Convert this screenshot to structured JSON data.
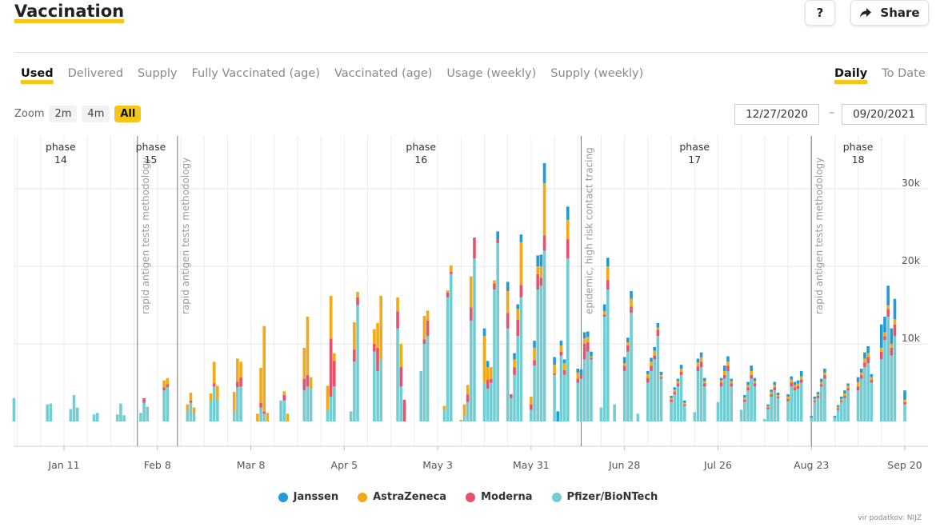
{
  "header": {
    "title": "Vaccination",
    "help_label": "?",
    "share_label": "Share"
  },
  "tabs": [
    "Used",
    "Delivered",
    "Supply",
    "Fully Vaccinated (age)",
    "Vaccinated (age)",
    "Usage (weekly)",
    "Supply (weekly)"
  ],
  "active_tab": "Used",
  "modes": [
    "Daily",
    "To Date"
  ],
  "active_mode": "Daily",
  "zoom": {
    "label": "Zoom",
    "options": [
      "2m",
      "4m",
      "All"
    ],
    "active": "All"
  },
  "date_range": {
    "from": "12/27/2020",
    "to": "09/20/2021",
    "separator": "–"
  },
  "source": "vir podatkov: NIJZ",
  "chart_data": {
    "type": "bar",
    "stacked": true,
    "x_range": [
      "2020-12-27",
      "2021-09-21"
    ],
    "ylim": [
      0,
      36000
    ],
    "y_ticks": [
      10000,
      20000,
      30000
    ],
    "y_tick_labels": [
      "10k",
      "20k",
      "30k"
    ],
    "x_ticks": [
      "2021-01-11",
      "2021-02-08",
      "2021-03-08",
      "2021-04-05",
      "2021-05-03",
      "2021-05-31",
      "2021-06-28",
      "2021-07-26",
      "2021-08-23",
      "2021-09-20"
    ],
    "x_tick_labels": [
      "Jan 11",
      "Feb 8",
      "Mar 8",
      "Apr 5",
      "May 3",
      "May 31",
      "Jun 28",
      "Jul 26",
      "Aug 23",
      "Sep 20"
    ],
    "series_colors": {
      "Janssen": "#1f9bd7",
      "AstraZeneca": "#f5a815",
      "Moderna": "#e8516b",
      "Pfizer/BioNTech": "#72cdd2"
    },
    "legend": [
      "Janssen",
      "AstraZeneca",
      "Moderna",
      "Pfizer/BioNTech"
    ],
    "phases": [
      {
        "label": "phase",
        "number": "14",
        "date": "2021-01-10"
      },
      {
        "label": "phase",
        "number": "15",
        "date": "2021-02-06"
      },
      {
        "label": "phase",
        "number": "16",
        "date": "2021-04-28"
      },
      {
        "label": "phase",
        "number": "17",
        "date": "2021-07-19"
      },
      {
        "label": "phase",
        "number": "18",
        "date": "2021-09-06"
      }
    ],
    "annotations": [
      {
        "date": "2021-02-02",
        "text": "rapid antigen tests methodology"
      },
      {
        "date": "2021-02-14",
        "text": "rapid antigen tests methodology"
      },
      {
        "date": "2021-06-15",
        "text": "epidemic, high risk contact tracing"
      },
      {
        "date": "2021-08-23",
        "text": "rapid antigen tests methodology"
      }
    ],
    "bars": [
      {
        "date": "2020-12-27",
        "p": 3000,
        "m": 0,
        "a": 0,
        "j": 0
      },
      {
        "date": "2021-01-06",
        "p": 2200,
        "m": 0,
        "a": 0,
        "j": 0
      },
      {
        "date": "2021-01-07",
        "p": 2300,
        "m": 0,
        "a": 0,
        "j": 0
      },
      {
        "date": "2021-01-13",
        "p": 1600,
        "m": 0,
        "a": 0,
        "j": 0
      },
      {
        "date": "2021-01-14",
        "p": 3400,
        "m": 0,
        "a": 0,
        "j": 0
      },
      {
        "date": "2021-01-15",
        "p": 1800,
        "m": 0,
        "a": 0,
        "j": 0
      },
      {
        "date": "2021-01-20",
        "p": 900,
        "m": 0,
        "a": 0,
        "j": 0
      },
      {
        "date": "2021-01-21",
        "p": 1100,
        "m": 0,
        "a": 0,
        "j": 0
      },
      {
        "date": "2021-01-27",
        "p": 900,
        "m": 0,
        "a": 0,
        "j": 0
      },
      {
        "date": "2021-01-28",
        "p": 2300,
        "m": 0,
        "a": 0,
        "j": 0
      },
      {
        "date": "2021-01-29",
        "p": 800,
        "m": 0,
        "a": 0,
        "j": 0
      },
      {
        "date": "2021-02-03",
        "p": 1100,
        "m": 0,
        "a": 0,
        "j": 0
      },
      {
        "date": "2021-02-04",
        "p": 2400,
        "m": 600,
        "a": 0,
        "j": 0
      },
      {
        "date": "2021-02-05",
        "p": 1900,
        "m": 0,
        "a": 0,
        "j": 0
      },
      {
        "date": "2021-02-10",
        "p": 4000,
        "m": 400,
        "a": 900,
        "j": 0
      },
      {
        "date": "2021-02-11",
        "p": 4400,
        "m": 400,
        "a": 800,
        "j": 0
      },
      {
        "date": "2021-02-17",
        "p": 1400,
        "m": 0,
        "a": 800,
        "j": 0
      },
      {
        "date": "2021-02-18",
        "p": 2400,
        "m": 300,
        "a": 1000,
        "j": 0
      },
      {
        "date": "2021-02-19",
        "p": 1000,
        "m": 0,
        "a": 800,
        "j": 0
      },
      {
        "date": "2021-02-24",
        "p": 2600,
        "m": 0,
        "a": 1000,
        "j": 0
      },
      {
        "date": "2021-02-25",
        "p": 4500,
        "m": 400,
        "a": 2800,
        "j": 0
      },
      {
        "date": "2021-02-26",
        "p": 2800,
        "m": 0,
        "a": 1800,
        "j": 0
      },
      {
        "date": "2021-03-03",
        "p": 1300,
        "m": 0,
        "a": 2500,
        "j": 0
      },
      {
        "date": "2021-03-04",
        "p": 4400,
        "m": 700,
        "a": 3000,
        "j": 0
      },
      {
        "date": "2021-03-05",
        "p": 4500,
        "m": 1200,
        "a": 2000,
        "j": 0
      },
      {
        "date": "2021-03-10",
        "p": 0,
        "m": 0,
        "a": 1000,
        "j": 0
      },
      {
        "date": "2021-03-11",
        "p": 1800,
        "m": 600,
        "a": 4500,
        "j": 0
      },
      {
        "date": "2021-03-12",
        "p": 1000,
        "m": 300,
        "a": 11000,
        "j": 0
      },
      {
        "date": "2021-03-13",
        "p": 0,
        "m": 0,
        "a": 1100,
        "j": 0
      },
      {
        "date": "2021-03-17",
        "p": 2700,
        "m": 0,
        "a": 0,
        "j": 0
      },
      {
        "date": "2021-03-18",
        "p": 2700,
        "m": 700,
        "a": 500,
        "j": 0
      },
      {
        "date": "2021-03-19",
        "p": 0,
        "m": 0,
        "a": 1000,
        "j": 0
      },
      {
        "date": "2021-03-24",
        "p": 4000,
        "m": 1500,
        "a": 4000,
        "j": 0
      },
      {
        "date": "2021-03-25",
        "p": 4500,
        "m": 1500,
        "a": 7500,
        "j": 0
      },
      {
        "date": "2021-03-26",
        "p": 4200,
        "m": 0,
        "a": 1500,
        "j": 0
      },
      {
        "date": "2021-03-31",
        "p": 1500,
        "m": 0,
        "a": 3100,
        "j": 0
      },
      {
        "date": "2021-04-01",
        "p": 3200,
        "m": 7500,
        "a": 5500,
        "j": 0
      },
      {
        "date": "2021-04-02",
        "p": 4500,
        "m": 3300,
        "a": 1000,
        "j": 0
      },
      {
        "date": "2021-04-07",
        "p": 1300,
        "m": 0,
        "a": 0,
        "j": 0
      },
      {
        "date": "2021-04-08",
        "p": 7700,
        "m": 1600,
        "a": 3500,
        "j": 0
      },
      {
        "date": "2021-04-09",
        "p": 15000,
        "m": 1000,
        "a": 700,
        "j": 0
      },
      {
        "date": "2021-04-14",
        "p": 9000,
        "m": 1000,
        "a": 1900,
        "j": 0
      },
      {
        "date": "2021-04-15",
        "p": 6500,
        "m": 3000,
        "a": 3200,
        "j": 0
      },
      {
        "date": "2021-04-16",
        "p": 8000,
        "m": 0,
        "a": 8200,
        "j": 0
      },
      {
        "date": "2021-04-21",
        "p": 12000,
        "m": 2200,
        "a": 1800,
        "j": 0
      },
      {
        "date": "2021-04-22",
        "p": 4500,
        "m": 2500,
        "a": 3000,
        "j": 0
      },
      {
        "date": "2021-04-23",
        "p": 0,
        "m": 2800,
        "a": 0,
        "j": 0
      },
      {
        "date": "2021-04-28",
        "p": 6500,
        "m": 0,
        "a": 0,
        "j": 0
      },
      {
        "date": "2021-04-29",
        "p": 10000,
        "m": 600,
        "a": 3000,
        "j": 0
      },
      {
        "date": "2021-04-30",
        "p": 11000,
        "m": 2000,
        "a": 1300,
        "j": 0
      },
      {
        "date": "2021-05-05",
        "p": 1500,
        "m": 0,
        "a": 500,
        "j": 0
      },
      {
        "date": "2021-05-06",
        "p": 16000,
        "m": 600,
        "a": 300,
        "j": 0
      },
      {
        "date": "2021-05-07",
        "p": 19000,
        "m": 300,
        "a": 800,
        "j": 0
      },
      {
        "date": "2021-05-10",
        "p": 0,
        "m": 0,
        "a": 200,
        "j": 0
      },
      {
        "date": "2021-05-11",
        "p": 700,
        "m": 0,
        "a": 1500,
        "j": 0
      },
      {
        "date": "2021-05-12",
        "p": 2500,
        "m": 1000,
        "a": 1200,
        "j": 0
      },
      {
        "date": "2021-05-13",
        "p": 13000,
        "m": 1700,
        "a": 4000,
        "j": 0
      },
      {
        "date": "2021-05-14",
        "p": 21000,
        "m": 2700,
        "a": 0,
        "j": 0
      },
      {
        "date": "2021-05-17",
        "p": 5000,
        "m": 0,
        "a": 6000,
        "j": 1000
      },
      {
        "date": "2021-05-18",
        "p": 4200,
        "m": 1200,
        "a": 1600,
        "j": 800
      },
      {
        "date": "2021-05-19",
        "p": 5000,
        "m": 500,
        "a": 1500,
        "j": 0
      },
      {
        "date": "2021-05-20",
        "p": 17000,
        "m": 800,
        "a": 400,
        "j": 0
      },
      {
        "date": "2021-05-21",
        "p": 23000,
        "m": 500,
        "a": 0,
        "j": 1000
      },
      {
        "date": "2021-05-24",
        "p": 12000,
        "m": 2000,
        "a": 2800,
        "j": 1200
      },
      {
        "date": "2021-05-25",
        "p": 3000,
        "m": 500,
        "a": 0,
        "j": 0
      },
      {
        "date": "2021-05-26",
        "p": 6000,
        "m": 1000,
        "a": 1000,
        "j": 800
      },
      {
        "date": "2021-05-27",
        "p": 11000,
        "m": 2100,
        "a": 1400,
        "j": 600
      },
      {
        "date": "2021-05-28",
        "p": 16000,
        "m": 1600,
        "a": 5500,
        "j": 1000
      },
      {
        "date": "2021-05-31",
        "p": 1500,
        "m": 700,
        "a": 1000,
        "j": 0
      },
      {
        "date": "2021-06-01",
        "p": 7200,
        "m": 700,
        "a": 1600,
        "j": 900
      },
      {
        "date": "2021-06-02",
        "p": 17000,
        "m": 2000,
        "a": 1000,
        "j": 1400
      },
      {
        "date": "2021-06-03",
        "p": 17500,
        "m": 1000,
        "a": 1500,
        "j": 1500
      },
      {
        "date": "2021-06-04",
        "p": 22000,
        "m": 2000,
        "a": 6700,
        "j": 2600
      },
      {
        "date": "2021-06-07",
        "p": 6000,
        "m": 200,
        "a": 1100,
        "j": 1000
      },
      {
        "date": "2021-06-08",
        "p": 0,
        "m": 0,
        "a": 0,
        "j": 1300
      },
      {
        "date": "2021-06-09",
        "p": 8500,
        "m": 500,
        "a": 800,
        "j": 600
      },
      {
        "date": "2021-06-10",
        "p": 6000,
        "m": 600,
        "a": 900,
        "j": 500
      },
      {
        "date": "2021-06-11",
        "p": 21000,
        "m": 2500,
        "a": 2500,
        "j": 1700
      },
      {
        "date": "2021-06-14",
        "p": 5000,
        "m": 500,
        "a": 800,
        "j": 500
      },
      {
        "date": "2021-06-15",
        "p": 5500,
        "m": 400,
        "a": 0,
        "j": 800
      },
      {
        "date": "2021-06-16",
        "p": 8000,
        "m": 2000,
        "a": 700,
        "j": 800
      },
      {
        "date": "2021-06-17",
        "p": 9000,
        "m": 1200,
        "a": 700,
        "j": 700
      },
      {
        "date": "2021-06-18",
        "p": 8000,
        "m": 200,
        "a": 200,
        "j": 600
      },
      {
        "date": "2021-06-21",
        "p": 1800,
        "m": 0,
        "a": 0,
        "j": 0
      },
      {
        "date": "2021-06-22",
        "p": 13500,
        "m": 300,
        "a": 400,
        "j": 900
      },
      {
        "date": "2021-06-23",
        "p": 17000,
        "m": 1200,
        "a": 1800,
        "j": 1100
      },
      {
        "date": "2021-06-25",
        "p": 2200,
        "m": 0,
        "a": 0,
        "j": 0
      },
      {
        "date": "2021-06-28",
        "p": 6500,
        "m": 700,
        "a": 300,
        "j": 800
      },
      {
        "date": "2021-06-29",
        "p": 9000,
        "m": 800,
        "a": 400,
        "j": 600
      },
      {
        "date": "2021-06-30",
        "p": 14000,
        "m": 800,
        "a": 1000,
        "j": 1000
      },
      {
        "date": "2021-07-02",
        "p": 1000,
        "m": 0,
        "a": 0,
        "j": 0
      },
      {
        "date": "2021-07-05",
        "p": 5000,
        "m": 600,
        "a": 500,
        "j": 400
      },
      {
        "date": "2021-07-06",
        "p": 6500,
        "m": 700,
        "a": 500,
        "j": 500
      },
      {
        "date": "2021-07-07",
        "p": 8000,
        "m": 500,
        "a": 600,
        "j": 500
      },
      {
        "date": "2021-07-08",
        "p": 11000,
        "m": 800,
        "a": 300,
        "j": 600
      },
      {
        "date": "2021-07-09",
        "p": 5500,
        "m": 200,
        "a": 300,
        "j": 400
      },
      {
        "date": "2021-07-12",
        "p": 2500,
        "m": 300,
        "a": 200,
        "j": 300
      },
      {
        "date": "2021-07-13",
        "p": 3500,
        "m": 300,
        "a": 300,
        "j": 300
      },
      {
        "date": "2021-07-14",
        "p": 4500,
        "m": 400,
        "a": 300,
        "j": 300
      },
      {
        "date": "2021-07-15",
        "p": 6000,
        "m": 400,
        "a": 400,
        "j": 500
      },
      {
        "date": "2021-07-16",
        "p": 2000,
        "m": 200,
        "a": 200,
        "j": 300
      },
      {
        "date": "2021-07-19",
        "p": 1200,
        "m": 0,
        "a": 0,
        "j": 0
      },
      {
        "date": "2021-07-20",
        "p": 6500,
        "m": 600,
        "a": 500,
        "j": 500
      },
      {
        "date": "2021-07-21",
        "p": 7000,
        "m": 700,
        "a": 600,
        "j": 600
      },
      {
        "date": "2021-07-22",
        "p": 4500,
        "m": 400,
        "a": 300,
        "j": 400
      },
      {
        "date": "2021-07-26",
        "p": 2500,
        "m": 0,
        "a": 0,
        "j": 0
      },
      {
        "date": "2021-07-27",
        "p": 4500,
        "m": 500,
        "a": 300,
        "j": 300
      },
      {
        "date": "2021-07-28",
        "p": 5500,
        "m": 500,
        "a": 500,
        "j": 700
      },
      {
        "date": "2021-07-29",
        "p": 6500,
        "m": 700,
        "a": 500,
        "j": 700
      },
      {
        "date": "2021-07-30",
        "p": 4500,
        "m": 400,
        "a": 300,
        "j": 300
      },
      {
        "date": "2021-08-02",
        "p": 1500,
        "m": 0,
        "a": 0,
        "j": 0
      },
      {
        "date": "2021-08-03",
        "p": 2500,
        "m": 300,
        "a": 300,
        "j": 300
      },
      {
        "date": "2021-08-04",
        "p": 4000,
        "m": 400,
        "a": 300,
        "j": 400
      },
      {
        "date": "2021-08-05",
        "p": 5500,
        "m": 500,
        "a": 500,
        "j": 700
      },
      {
        "date": "2021-08-06",
        "p": 4500,
        "m": 400,
        "a": 300,
        "j": 400
      },
      {
        "date": "2021-08-09",
        "p": 300,
        "m": 0,
        "a": 0,
        "j": 0
      },
      {
        "date": "2021-08-10",
        "p": 1600,
        "m": 200,
        "a": 200,
        "j": 200
      },
      {
        "date": "2021-08-11",
        "p": 3200,
        "m": 300,
        "a": 300,
        "j": 300
      },
      {
        "date": "2021-08-12",
        "p": 4000,
        "m": 400,
        "a": 300,
        "j": 400
      },
      {
        "date": "2021-08-13",
        "p": 3000,
        "m": 200,
        "a": 200,
        "j": 300
      },
      {
        "date": "2021-08-16",
        "p": 2600,
        "m": 300,
        "a": 300,
        "j": 300
      },
      {
        "date": "2021-08-17",
        "p": 4500,
        "m": 500,
        "a": 400,
        "j": 400
      },
      {
        "date": "2021-08-18",
        "p": 4000,
        "m": 400,
        "a": 300,
        "j": 400
      },
      {
        "date": "2021-08-19",
        "p": 4200,
        "m": 400,
        "a": 300,
        "j": 400
      },
      {
        "date": "2021-08-20",
        "p": 5000,
        "m": 400,
        "a": 400,
        "j": 700
      },
      {
        "date": "2021-08-23",
        "p": 500,
        "m": 0,
        "a": 0,
        "j": 200
      },
      {
        "date": "2021-08-24",
        "p": 2500,
        "m": 200,
        "a": 200,
        "j": 300
      },
      {
        "date": "2021-08-25",
        "p": 3000,
        "m": 300,
        "a": 200,
        "j": 300
      },
      {
        "date": "2021-08-26",
        "p": 4500,
        "m": 300,
        "a": 300,
        "j": 400
      },
      {
        "date": "2021-08-27",
        "p": 5500,
        "m": 500,
        "a": 300,
        "j": 500
      },
      {
        "date": "2021-08-30",
        "p": 500,
        "m": 0,
        "a": 0,
        "j": 200
      },
      {
        "date": "2021-08-31",
        "p": 1500,
        "m": 200,
        "a": 200,
        "j": 200
      },
      {
        "date": "2021-09-01",
        "p": 2500,
        "m": 200,
        "a": 200,
        "j": 300
      },
      {
        "date": "2021-09-02",
        "p": 3000,
        "m": 300,
        "a": 300,
        "j": 400
      },
      {
        "date": "2021-09-03",
        "p": 4000,
        "m": 300,
        "a": 300,
        "j": 300
      },
      {
        "date": "2021-09-06",
        "p": 4000,
        "m": 500,
        "a": 600,
        "j": 600
      },
      {
        "date": "2021-09-07",
        "p": 5500,
        "m": 500,
        "a": 300,
        "j": 500
      },
      {
        "date": "2021-09-08",
        "p": 7000,
        "m": 600,
        "a": 500,
        "j": 800
      },
      {
        "date": "2021-09-09",
        "p": 7500,
        "m": 800,
        "a": 500,
        "j": 900
      },
      {
        "date": "2021-09-10",
        "p": 5000,
        "m": 400,
        "a": 300,
        "j": 400
      },
      {
        "date": "2021-09-13",
        "p": 8000,
        "m": 1000,
        "a": 500,
        "j": 3000
      },
      {
        "date": "2021-09-14",
        "p": 10500,
        "m": 500,
        "a": 500,
        "j": 2000
      },
      {
        "date": "2021-09-15",
        "p": 13500,
        "m": 1000,
        "a": 500,
        "j": 2500
      },
      {
        "date": "2021-09-16",
        "p": 8500,
        "m": 1000,
        "a": 500,
        "j": 2000
      },
      {
        "date": "2021-09-17",
        "p": 11000,
        "m": 1500,
        "a": 700,
        "j": 2600
      },
      {
        "date": "2021-09-20",
        "p": 2200,
        "m": 300,
        "a": 300,
        "j": 1200
      }
    ]
  }
}
